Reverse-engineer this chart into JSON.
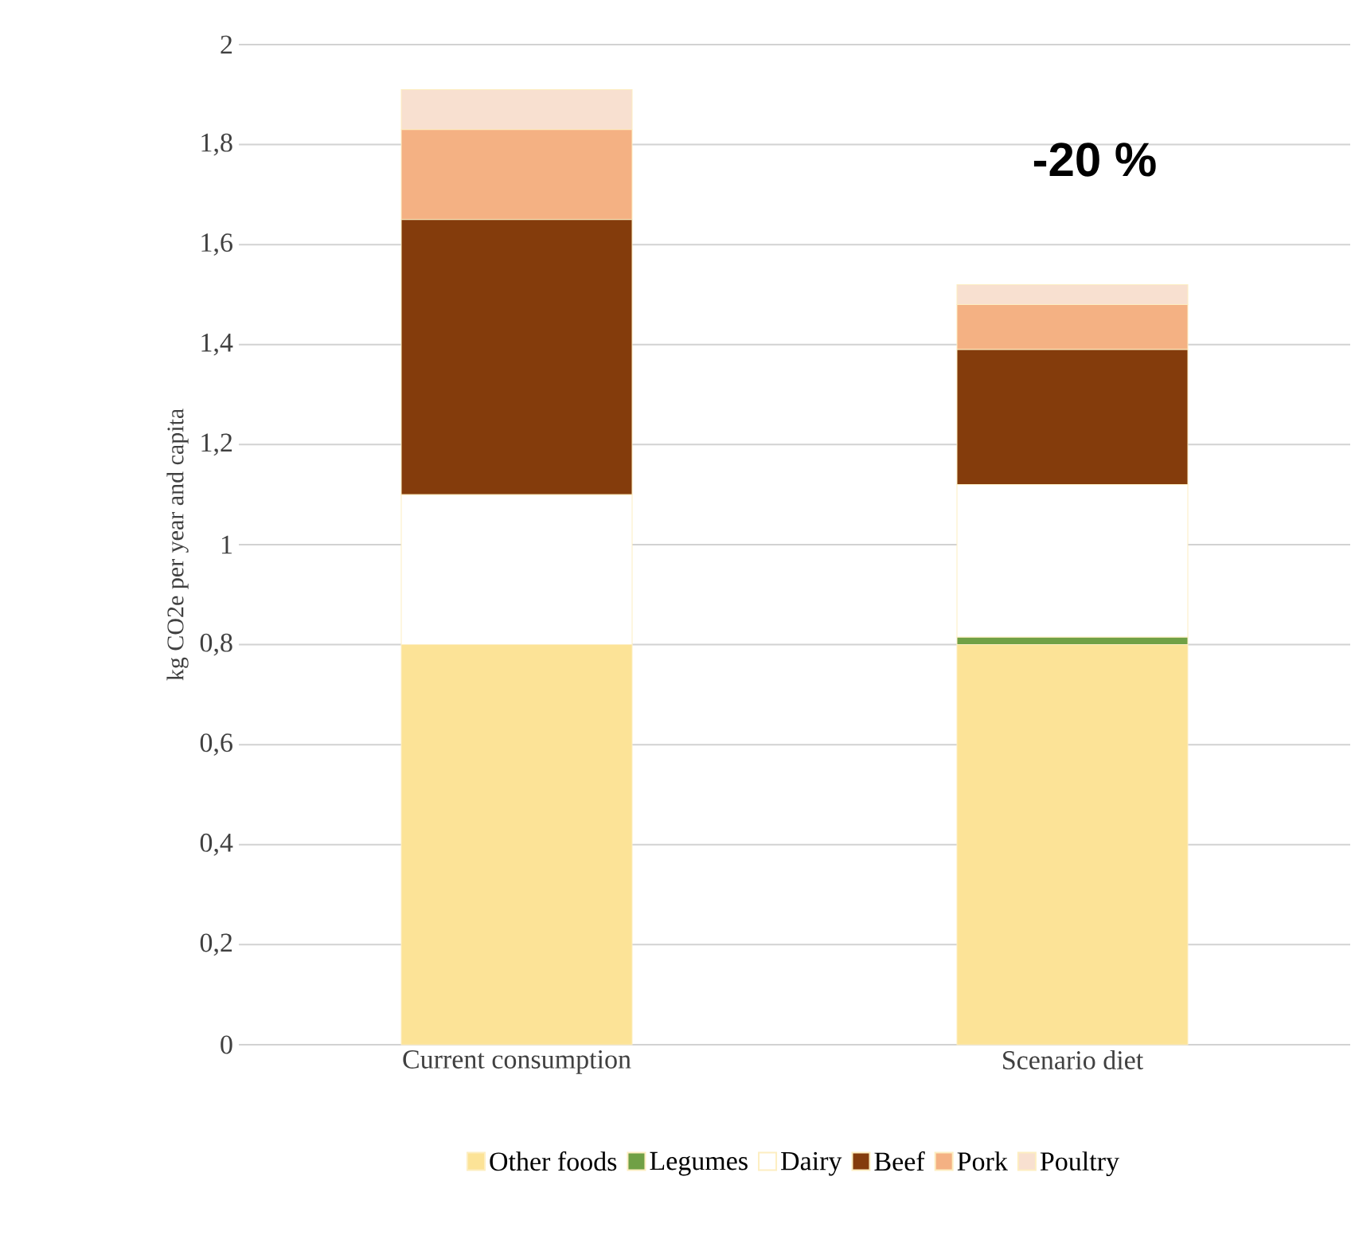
{
  "chart_data": {
    "type": "bar",
    "stacked": true,
    "ylabel": "kg CO2e per year and capita",
    "categories": [
      "Current consumption",
      "Scenario diet"
    ],
    "series": [
      {
        "name": "Other foods",
        "color": "#fce397",
        "values": [
          0.8,
          0.8
        ]
      },
      {
        "name": "Legumes",
        "color": "#70a045",
        "values": [
          0,
          0.015
        ]
      },
      {
        "name": "Dairy",
        "color": "#ffffff",
        "values": [
          0.3,
          0.305
        ]
      },
      {
        "name": "Beef",
        "color": "#843c0c",
        "values": [
          0.55,
          0.27
        ]
      },
      {
        "name": "Pork",
        "color": "#f4b183",
        "values": [
          0.18,
          0.09
        ]
      },
      {
        "name": "Poultry",
        "color": "#f8e0d0",
        "values": [
          0.08,
          0.04
        ]
      }
    ],
    "ylim": [
      0,
      2
    ],
    "yticks": [
      0,
      {
        "value": 0.2,
        "label": "0,2"
      },
      {
        "value": 0.4,
        "label": "0,4"
      },
      {
        "value": 0.6,
        "label": "0,6"
      },
      {
        "value": 0.8,
        "label": "0,8"
      },
      1,
      {
        "value": 1.2,
        "label": "1,2"
      },
      {
        "value": 1.4,
        "label": "1,4"
      },
      {
        "value": 1.6,
        "label": "1,6"
      },
      {
        "value": 1.8,
        "label": "1,8"
      },
      2
    ],
    "grid": "y",
    "legend": "bottom",
    "annotations": [
      "-20 %"
    ]
  }
}
